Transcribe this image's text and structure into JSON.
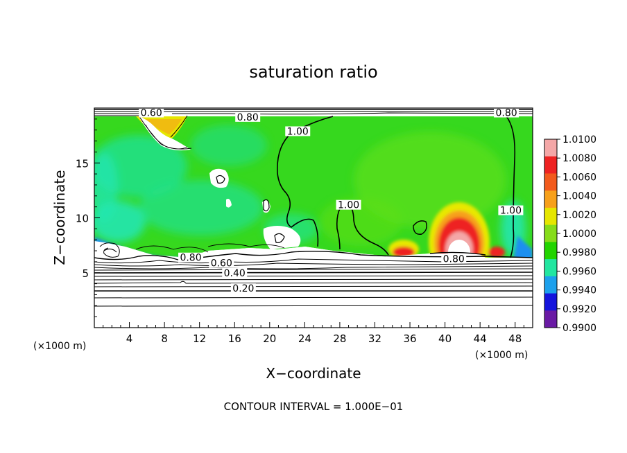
{
  "chart_data": {
    "type": "heatmap",
    "title": "saturation ratio",
    "xlabel": "X−coordinate",
    "ylabel": "Z−coordinate",
    "x_unit": "(×1000 m)",
    "z_unit": "(×1000 m)",
    "xlim": [
      0,
      50
    ],
    "ylim": [
      0,
      20
    ],
    "x_ticks": [
      4,
      8,
      12,
      16,
      20,
      24,
      28,
      32,
      36,
      40,
      44,
      48
    ],
    "y_ticks": [
      5,
      10,
      15
    ],
    "colorbar": {
      "levels": [
        "1.0100",
        "1.0080",
        "1.0060",
        "1.0040",
        "1.0020",
        "1.0000",
        "0.9980",
        "0.9960",
        "0.9940",
        "0.9920",
        "0.9900"
      ],
      "colors": [
        "#f4a7a7",
        "#ee2222",
        "#f25a1c",
        "#f7a01a",
        "#e6e600",
        "#86dc1a",
        "#22d400",
        "#22e6a0",
        "#1ca0ec",
        "#1414dc",
        "#6a1aa4"
      ]
    },
    "contour_levels": [
      0.2,
      0.4,
      0.6,
      0.8,
      1.0
    ],
    "contour_labels": [
      {
        "text": "0.60",
        "x": 6.5,
        "z": 19.4
      },
      {
        "text": "0.80",
        "x": 17.5,
        "z": 19.0
      },
      {
        "text": "0.80",
        "x": 47.0,
        "z": 19.4
      },
      {
        "text": "1.00",
        "x": 23.2,
        "z": 17.7
      },
      {
        "text": "1.00",
        "x": 29.0,
        "z": 11.0
      },
      {
        "text": "1.00",
        "x": 47.5,
        "z": 10.5
      },
      {
        "text": "0.80",
        "x": 11.0,
        "z": 6.2
      },
      {
        "text": "0.60",
        "x": 14.5,
        "z": 5.7
      },
      {
        "text": "0.40",
        "x": 16.0,
        "z": 4.8
      },
      {
        "text": "0.20",
        "x": 17.0,
        "z": 3.4
      },
      {
        "text": "0.80",
        "x": 41.0,
        "z": 6.1
      }
    ],
    "footer": "CONTOUR INTERVAL = 1.000E−01"
  }
}
